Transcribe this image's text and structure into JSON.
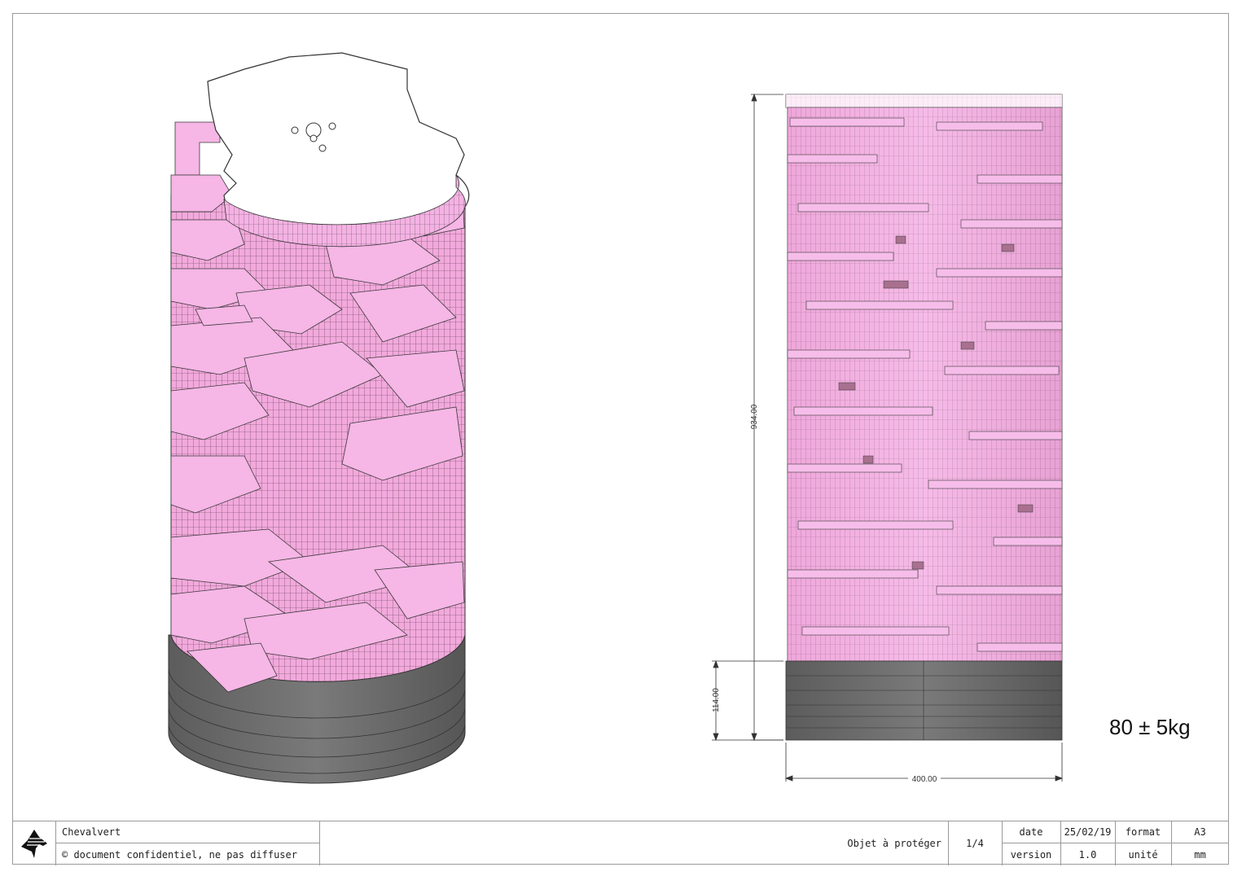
{
  "drawing": {
    "dimensions": {
      "total_height": "934.00",
      "base_height": "114.00",
      "width": "400.00"
    },
    "weight": "80 ± 5kg",
    "colors": {
      "pink": "#f6b6e6",
      "pink_dark": "#c98aac",
      "grey_base": "#6e6e6e",
      "outline": "#3a3a3a"
    }
  },
  "title_block": {
    "logo_icon": "horse-head-icon",
    "company": "Chevalvert",
    "confidential": "© document confidentiel, ne pas diffuser",
    "object": "Objet à protéger",
    "page": "1/4",
    "date_label": "date",
    "date_value": "25/02/19",
    "format_label": "format",
    "format_value": "A3",
    "version_label": "version",
    "version_value": "1.0",
    "unit_label": "unité",
    "unit_value": "mm"
  }
}
